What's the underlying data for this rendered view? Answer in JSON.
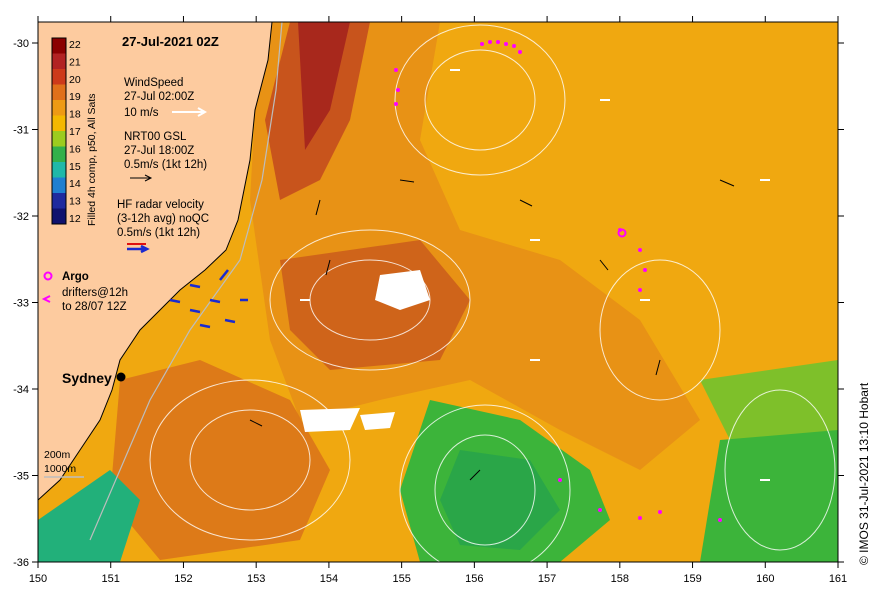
{
  "title": "27-Jul-2021 02Z",
  "colorbar": {
    "ticks": [
      "22",
      "21",
      "20",
      "19",
      "18",
      "17",
      "16",
      "15",
      "14",
      "13",
      "12"
    ],
    "label": "Filled 4h comp, p50, All Sats",
    "colors": [
      "#8b0000",
      "#b22222",
      "#cd3a1a",
      "#e0701a",
      "#ee9a14",
      "#f4b800",
      "#9ccc1e",
      "#33b04a",
      "#1fb8a8",
      "#1f7fd0",
      "#1f2a9e",
      "#10126e"
    ]
  },
  "legend": {
    "wind_title": "WindSpeed",
    "wind_time": "27-Jul 02:00Z",
    "wind_scale": "10 m/s",
    "gsl_title": "NRT00 GSL",
    "gsl_time": "27-Jul 18:00Z",
    "gsl_scale": "0.5m/s (1kt 12h)",
    "hf_title": "HF radar velocity",
    "hf_sub": "(3-12h avg) noQC",
    "hf_scale": "0.5m/s (1kt 12h)",
    "argo": "Argo",
    "drifters_1": "drifters@12h",
    "drifters_2": "to 28/07 12Z",
    "iso_200": "200m",
    "iso_1000": "1000m"
  },
  "city": "Sydney",
  "x_ticks": [
    "150",
    "151",
    "152",
    "153",
    "154",
    "155",
    "156",
    "157",
    "158",
    "159",
    "160",
    "161"
  ],
  "y_ticks": [
    "-30",
    "-31",
    "-32",
    "-33",
    "-34",
    "-35",
    "-36"
  ],
  "credit": "© IMOS 31-Jul-2021 13:10 Hobart",
  "colors": {
    "land": "#fdcb9f",
    "warm_core": "#c8541c",
    "ocean_warm": "#e89215",
    "ocean_mid": "#f0a810",
    "cold_eddy": "#3cb43a",
    "shelf": "#22b07a"
  }
}
